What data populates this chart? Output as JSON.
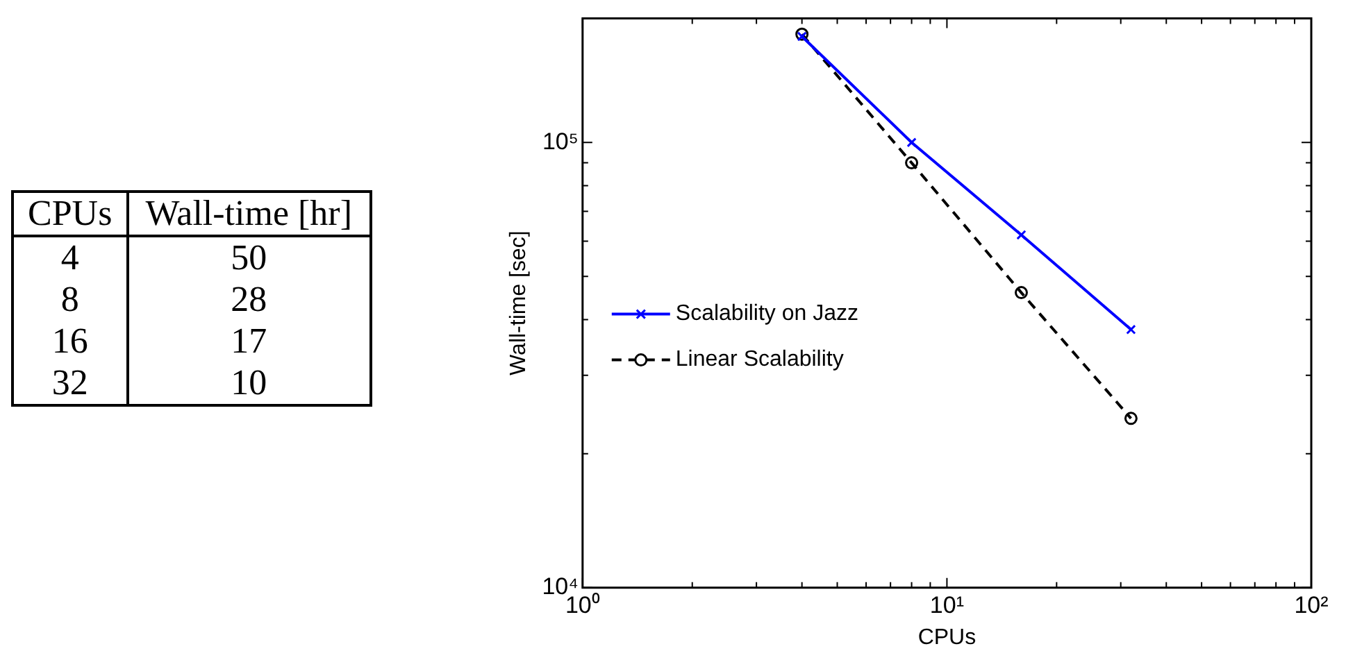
{
  "chart_data": [
    {
      "type": "other",
      "xlabel": "CPUs",
      "ylabel": "Wall-time [hr]",
      "categories": [
        "4",
        "8",
        "16",
        "32"
      ],
      "values": [
        50,
        28,
        17,
        10
      ],
      "data_labels": true
    },
    {
      "type": "line",
      "xlabel": "CPUs",
      "ylabel": "Wall-time [sec]",
      "log": "xy",
      "xlim": [
        1,
        100
      ],
      "ylim": [
        10000,
        190000
      ],
      "xticks": [
        {
          "value": 1,
          "label": "10⁰"
        },
        {
          "value": 2,
          "label": null
        },
        {
          "value": 3,
          "label": null
        },
        {
          "value": 4,
          "label": null
        },
        {
          "value": 5,
          "label": null
        },
        {
          "value": 6,
          "label": null
        },
        {
          "value": 7,
          "label": null
        },
        {
          "value": 8,
          "label": null
        },
        {
          "value": 9,
          "label": null
        },
        {
          "value": 10,
          "label": "10¹"
        },
        {
          "value": 20,
          "label": null
        },
        {
          "value": 30,
          "label": null
        },
        {
          "value": 40,
          "label": null
        },
        {
          "value": 50,
          "label": null
        },
        {
          "value": 60,
          "label": null
        },
        {
          "value": 70,
          "label": null
        },
        {
          "value": 80,
          "label": null
        },
        {
          "value": 90,
          "label": null
        },
        {
          "value": 100,
          "label": "10²"
        }
      ],
      "yticks": [
        {
          "value": 10000,
          "label": "10⁴"
        },
        {
          "value": 20000,
          "label": null
        },
        {
          "value": 30000,
          "label": null
        },
        {
          "value": 40000,
          "label": null
        },
        {
          "value": 50000,
          "label": null
        },
        {
          "value": 60000,
          "label": null
        },
        {
          "value": 70000,
          "label": null
        },
        {
          "value": 80000,
          "label": null
        },
        {
          "value": 90000,
          "label": null
        },
        {
          "value": 100000,
          "label": "10⁵"
        }
      ],
      "x": [
        4,
        8,
        16,
        32
      ],
      "grid": false,
      "legend": "left",
      "series": [
        {
          "name": "Scalability on Jazz",
          "color": "#0000ff",
          "values": [
            173000,
            100000,
            62000,
            38000
          ],
          "marker": "cross",
          "line_style": "solid"
        },
        {
          "name": "Linear Scalability",
          "color": "#000000",
          "values": [
            175000,
            90000,
            46000,
            24000
          ],
          "marker": "circle",
          "line_style": "dashed"
        }
      ]
    }
  ]
}
